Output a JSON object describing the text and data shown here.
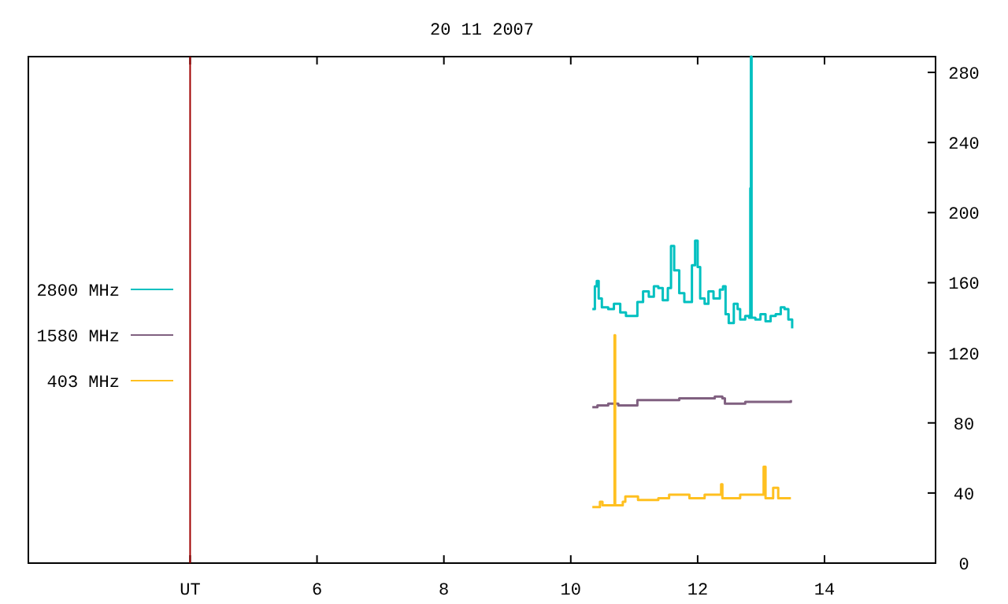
{
  "chart_data": {
    "type": "step",
    "title": "20 11 2007",
    "xlim": [
      1.45,
      15.75
    ],
    "xticks": [
      {
        "value": 4,
        "label": "UT"
      },
      6,
      8,
      10,
      12,
      14
    ],
    "ylim": [
      0,
      289
    ],
    "yticks": [
      0,
      40,
      80,
      120,
      160,
      200,
      240,
      280
    ],
    "grid": false,
    "legend": "left",
    "ref_lines": [
      {
        "axis": "x",
        "value": 4,
        "color": "#a00000"
      }
    ],
    "series": [
      {
        "name": "2800 MHz",
        "color": "#00c0c0",
        "x": [
          10.34,
          10.38,
          10.41,
          10.44,
          10.49,
          10.59,
          10.68,
          10.78,
          10.87,
          11.02,
          11.05,
          11.14,
          11.23,
          11.31,
          11.38,
          11.45,
          11.53,
          11.58,
          11.63,
          11.71,
          11.79,
          11.85,
          11.91,
          11.96,
          12.0,
          12.04,
          12.11,
          12.17,
          12.25,
          12.35,
          12.4,
          12.44,
          12.49,
          12.57,
          12.63,
          12.67,
          12.75,
          12.81,
          12.83,
          12.84,
          12.85,
          12.91,
          12.99,
          13.07,
          13.15,
          13.23,
          13.31,
          13.37,
          13.43,
          13.49
        ],
        "values": [
          145,
          158,
          161,
          151,
          146,
          145,
          148,
          143,
          141,
          141,
          149,
          155,
          152,
          158,
          157,
          150,
          157,
          181,
          167,
          154,
          149,
          149,
          170,
          184,
          169,
          151,
          148,
          155,
          151,
          156,
          158,
          142,
          137,
          148,
          145,
          139,
          141,
          140,
          214,
          289,
          140,
          139,
          142,
          138,
          141,
          142,
          146,
          145,
          139,
          134
        ]
      },
      {
        "name": "1580 MHz",
        "color": "#806080",
        "x": [
          10.34,
          10.42,
          10.59,
          10.75,
          11.0,
          11.05,
          11.31,
          11.71,
          12.03,
          12.27,
          12.39,
          12.43,
          12.59,
          12.75,
          13.07,
          13.31,
          13.47
        ],
        "values": [
          89,
          90,
          91,
          90,
          90,
          93,
          93,
          94,
          94,
          95,
          94,
          91,
          91,
          92,
          92,
          92,
          93
        ]
      },
      {
        "name": "403 MHz",
        "color": "#ffc020",
        "x": [
          10.34,
          10.46,
          10.5,
          10.66,
          10.69,
          10.7,
          10.82,
          10.86,
          11.06,
          11.31,
          11.38,
          11.55,
          11.87,
          12.11,
          12.37,
          12.39,
          12.67,
          12.99,
          13.04,
          13.07,
          13.19,
          13.27,
          13.47
        ],
        "values": [
          32,
          35,
          33,
          33,
          130,
          33,
          35,
          38,
          36,
          36,
          37,
          39,
          37,
          39,
          45,
          37,
          39,
          39,
          55,
          37,
          43,
          37,
          37
        ]
      }
    ]
  }
}
